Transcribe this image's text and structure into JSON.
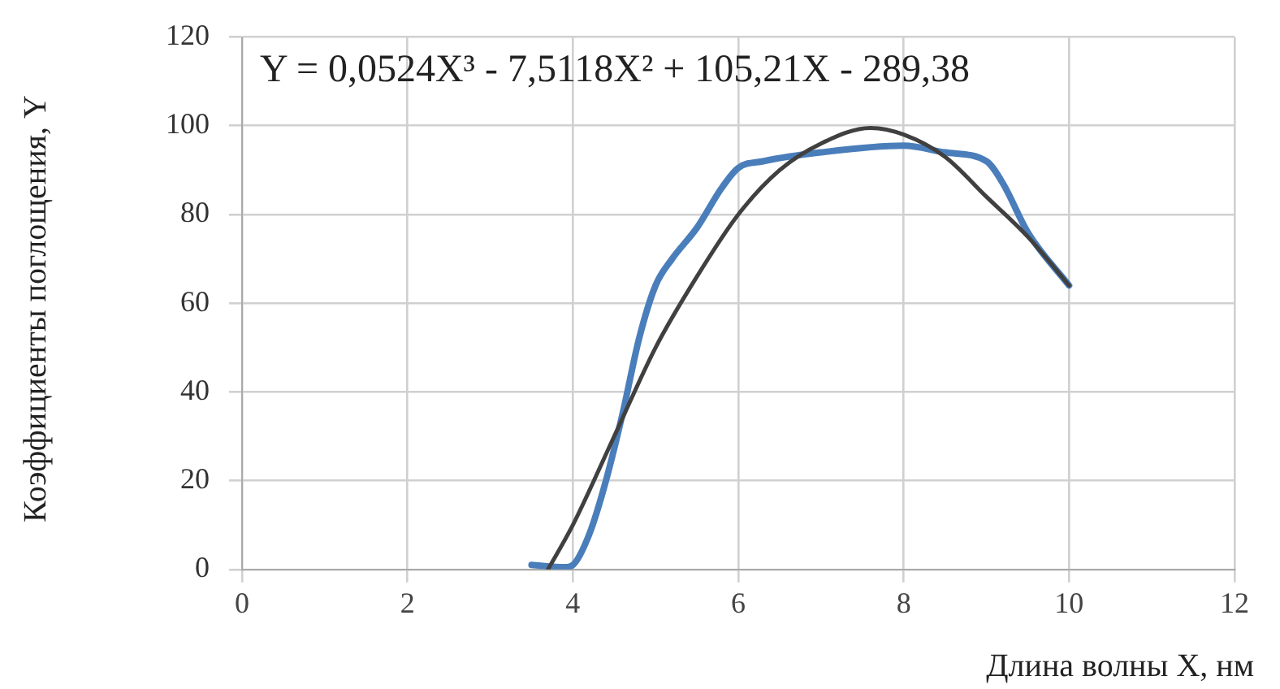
{
  "chart_data": {
    "type": "line",
    "xlabel": "Длина волны X, нм",
    "ylabel": "Коэффициенты поглощения, Y",
    "annotations": [
      "Y = 0,0524X³ - 7,5118X² + 105,21X - 289,38"
    ],
    "xlim": [
      0,
      12
    ],
    "xticks": [
      0,
      2,
      4,
      6,
      8,
      10,
      12
    ],
    "ylim": [
      0,
      120
    ],
    "yticks": [
      0,
      20,
      40,
      60,
      80,
      100,
      120
    ],
    "grid": true,
    "marker": "none",
    "line_style": "solid",
    "series": [
      {
        "color": "#4a7ebb",
        "x": [
          3.5,
          3.9,
          4.0,
          4.2,
          4.4,
          4.6,
          4.8,
          5.0,
          5.2,
          5.5,
          5.8,
          6.0,
          6.3,
          7.0,
          8.0,
          8.5,
          9.0,
          9.2,
          9.5,
          10.0
        ],
        "values": [
          1,
          0.5,
          1,
          8,
          20,
          35,
          52,
          64,
          70,
          77,
          86,
          90.5,
          92,
          94,
          95.5,
          94,
          92,
          87,
          76,
          64
        ]
      },
      {
        "color": "#404040",
        "x": [
          3.7,
          4.0,
          4.5,
          5.0,
          5.5,
          6.0,
          6.5,
          7.0,
          7.6,
          8.0,
          8.5,
          9.0,
          9.5,
          10.0
        ],
        "values": [
          0,
          10,
          30,
          50,
          66,
          80,
          90,
          96,
          99.5,
          98,
          93,
          84,
          75,
          64
        ]
      }
    ]
  }
}
